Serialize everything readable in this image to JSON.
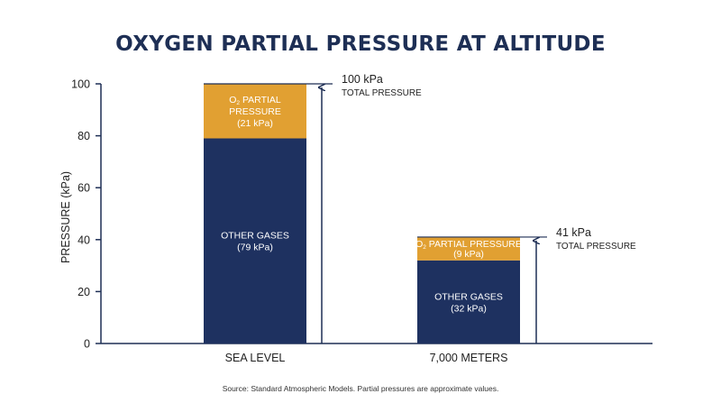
{
  "title": "OXYGEN PARTIAL PRESSURE AT ALTITUDE",
  "source": "Source: Standard Atmospheric Models. Partial pressures are approximate values.",
  "colors": {
    "title": "#1e2f55",
    "other_gases": "#1e3160",
    "oxygen": "#e1a032",
    "axis": "#1e2f55"
  },
  "chart_data": {
    "type": "bar",
    "stacked": true,
    "categories": [
      "SEA LEVEL",
      "7,000 METERS"
    ],
    "ylabel": "PRESSURE (kPa)",
    "ylim": [
      0,
      100
    ],
    "yticks": [
      0,
      20,
      40,
      60,
      80,
      100
    ],
    "grid": false,
    "series": [
      {
        "key": "other",
        "values": [
          79,
          32
        ],
        "labels": [
          [
            "OTHER GASES",
            "(79 kPa)"
          ],
          [
            "OTHER GASES",
            "(32 kPa)"
          ]
        ]
      },
      {
        "key": "oxygen",
        "values": [
          21,
          9
        ],
        "labels": [
          [
            "PARTIAL",
            "PRESSURE",
            "(21 kPa)"
          ],
          [
            "PARTIAL PRESSURE",
            "(9 kPa)"
          ]
        ]
      }
    ],
    "o2_symbol": "O",
    "o2_subscript": "2",
    "totals": [
      {
        "value": "100 kPa",
        "label": "TOTAL PRESSURE"
      },
      {
        "value": "41 kPa",
        "label": "TOTAL PRESSURE"
      }
    ]
  }
}
